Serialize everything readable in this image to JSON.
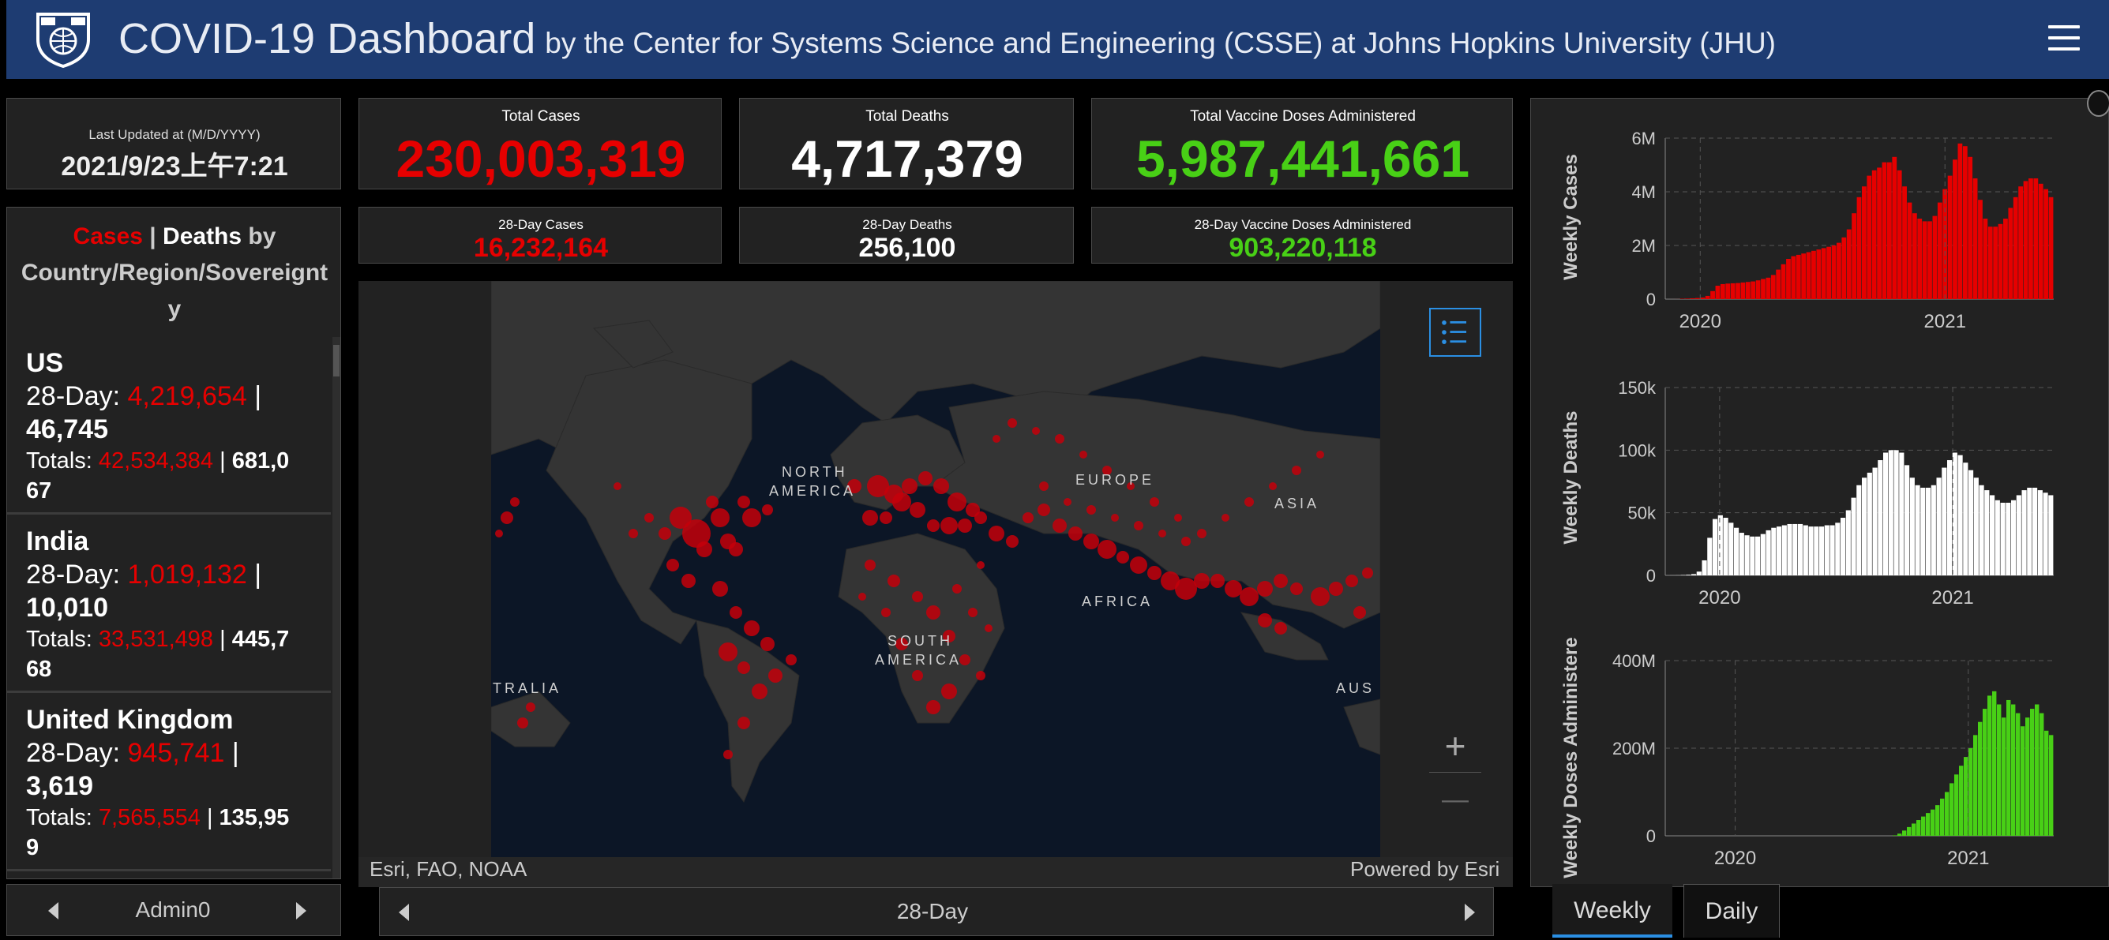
{
  "header": {
    "title": "COVID-19 Dashboard",
    "subtitle": "by the Center for Systems Science and Engineering (CSSE) at Johns Hopkins University (JHU)",
    "menu_icon": "hamburger-menu-icon",
    "logo_icon": "jhu-shield-logo"
  },
  "last_updated": {
    "label": "Last Updated at (M/D/YYYY)",
    "value": "2021/9/23上午7:21"
  },
  "totals": {
    "cases": {
      "label": "Total Cases",
      "value": "230,003,319"
    },
    "deaths": {
      "label": "Total Deaths",
      "value": "4,717,379"
    },
    "vaccines": {
      "label": "Total Vaccine Doses Administered",
      "value": "5,987,441,661"
    }
  },
  "day28": {
    "cases": {
      "label": "28-Day Cases",
      "value": "16,232,164"
    },
    "deaths": {
      "label": "28-Day Deaths",
      "value": "256,100"
    },
    "vaccines": {
      "label": "28-Day Vaccine Doses Administered",
      "value": "903,220,118"
    }
  },
  "list": {
    "heading_cases": "Cases",
    "heading_sep": " | ",
    "heading_deaths": "Deaths",
    "heading_rest": " by Country/Region/Sovereignt",
    "heading_end": "y",
    "items": [
      {
        "name": "US",
        "day28_label": "28-Day: ",
        "day28_cases": "4,219,654",
        "day28_sep": " |",
        "day28_deaths": "46,745",
        "totals_label": "Totals: ",
        "totals_cases": "42,534,384",
        "totals_sep": " | ",
        "totals_deaths_a": "681,0",
        "totals_deaths_b": "67"
      },
      {
        "name": "India",
        "day28_label": "28-Day: ",
        "day28_cases": "1,019,132",
        "day28_sep": " |",
        "day28_deaths": "10,010",
        "totals_label": "Totals: ",
        "totals_cases": "33,531,498",
        "totals_sep": " | ",
        "totals_deaths_a": "445,7",
        "totals_deaths_b": "68"
      },
      {
        "name": "United Kingdom",
        "day28_label": "28-Day: ",
        "day28_cases": "945,741",
        "day28_sep": " |",
        "day28_deaths": "3,619",
        "totals_label": "Totals: ",
        "totals_cases": "7,565,554",
        "totals_sep": " | ",
        "totals_deaths_a": "135,95",
        "totals_deaths_b": "9"
      }
    ],
    "footer": "Admin0"
  },
  "map": {
    "labels": {
      "north1": "NORTH",
      "north2": "AMERICA",
      "europe": "EUROPE",
      "asia": "ASIA",
      "africa": "AFRICA",
      "south1": "SOUTH",
      "south2": "AMERICA",
      "australia": "TRALIA",
      "aus": "AUS"
    },
    "attribution": "Esri, FAO, NOAA",
    "powered": "Powered by Esri",
    "zoom_in": "+",
    "zoom_out": "—",
    "legend_icon": "legend-list-icon",
    "footer": "28-Day"
  },
  "tabs": {
    "weekly": "Weekly",
    "daily": "Daily"
  },
  "colors": {
    "cases": "#e60000",
    "deaths": "#ffffff",
    "vaccines": "#48d016",
    "header": "#1e3c72",
    "panel": "#222222"
  },
  "charts": {
    "cases": {
      "ylabel": "Weekly Cases",
      "yticks": [
        "0",
        "2M",
        "4M",
        "6M"
      ],
      "xticks": [
        "2020",
        "2021"
      ]
    },
    "deaths": {
      "ylabel": "Weekly Deaths",
      "yticks": [
        "0",
        "50k",
        "100k",
        "150k"
      ],
      "xticks": [
        "2020",
        "2021"
      ]
    },
    "vaccines": {
      "ylabel": "Weekly Doses Administere",
      "yticks": [
        "0",
        "200M",
        "400M"
      ],
      "xticks": [
        "2020",
        "2021"
      ]
    }
  },
  "chart_data": [
    {
      "type": "bar",
      "title": "",
      "ylabel": "Weekly Cases",
      "ylim": [
        0,
        6000000
      ],
      "x_start": "2020-01-22",
      "x_step_days": 7,
      "values": [
        500,
        2000,
        15000,
        20000,
        30000,
        40000,
        60000,
        120000,
        300000,
        500000,
        560000,
        580000,
        590000,
        600000,
        620000,
        640000,
        660000,
        700000,
        750000,
        800000,
        900000,
        1100000,
        1300000,
        1500000,
        1600000,
        1650000,
        1700000,
        1750000,
        1800000,
        1850000,
        1900000,
        1950000,
        2000000,
        2100000,
        2300000,
        2600000,
        3200000,
        3800000,
        4200000,
        4600000,
        4800000,
        4900000,
        5100000,
        5100000,
        5300000,
        4800000,
        4200000,
        3600000,
        3200000,
        3000000,
        2900000,
        2900000,
        3100000,
        3600000,
        4100000,
        4600000,
        5200000,
        5800000,
        5700000,
        5300000,
        4500000,
        3700000,
        3000000,
        2700000,
        2700000,
        2800000,
        3000000,
        3400000,
        3800000,
        4200000,
        4400000,
        4500000,
        4500000,
        4300000,
        4100000,
        3800000
      ]
    },
    {
      "type": "bar",
      "title": "",
      "ylabel": "Weekly Deaths",
      "ylim": [
        0,
        150000
      ],
      "x_start": "2020-01-22",
      "x_step_days": 7,
      "values": [
        50,
        100,
        300,
        500,
        1000,
        3000,
        12000,
        30000,
        45000,
        48000,
        46000,
        42000,
        38000,
        34000,
        32000,
        31000,
        31000,
        33000,
        36000,
        38000,
        39000,
        40000,
        41000,
        41000,
        41000,
        40000,
        39000,
        39000,
        39000,
        40000,
        40000,
        42000,
        46000,
        52000,
        62000,
        72000,
        78000,
        82000,
        86000,
        92000,
        98000,
        100000,
        100000,
        98000,
        88000,
        78000,
        72000,
        70000,
        70000,
        72000,
        78000,
        86000,
        92000,
        98000,
        96000,
        90000,
        84000,
        78000,
        72000,
        68000,
        64000,
        60000,
        58000,
        58000,
        60000,
        64000,
        68000,
        70000,
        70000,
        68000,
        66000,
        64000
      ]
    },
    {
      "type": "bar",
      "title": "",
      "ylabel": "Weekly Doses Administere",
      "ylim": [
        0,
        400000000
      ],
      "x_start": "2020-01-22",
      "x_step_days": 7,
      "values": [
        0,
        0,
        0,
        0,
        0,
        0,
        0,
        0,
        0,
        0,
        0,
        0,
        0,
        0,
        0,
        0,
        0,
        0,
        0,
        0,
        0,
        0,
        0,
        0,
        0,
        0,
        0,
        0,
        0,
        0,
        0,
        0,
        0,
        0,
        0,
        0,
        0,
        0,
        0,
        0,
        0,
        0,
        0,
        0,
        0,
        0,
        0,
        1000000,
        5000000,
        12000000,
        20000000,
        28000000,
        36000000,
        44000000,
        52000000,
        60000000,
        70000000,
        85000000,
        100000000,
        120000000,
        140000000,
        160000000,
        180000000,
        200000000,
        230000000,
        260000000,
        290000000,
        320000000,
        330000000,
        300000000,
        270000000,
        310000000,
        300000000,
        280000000,
        250000000,
        270000000,
        290000000,
        300000000,
        280000000,
        240000000,
        230000000
      ]
    }
  ]
}
